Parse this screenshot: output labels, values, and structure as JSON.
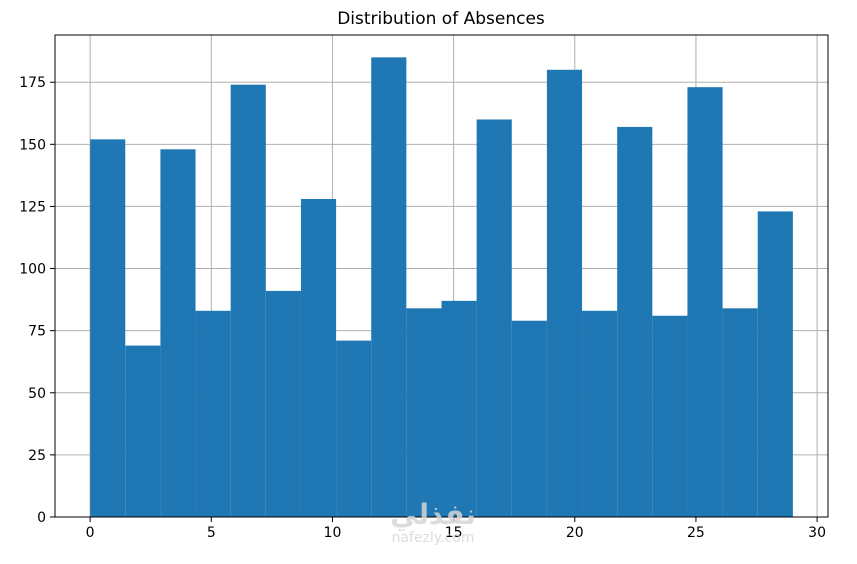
{
  "chart_data": {
    "type": "bar",
    "title": "Distribution of Absences",
    "xlabel": "",
    "ylabel": "",
    "bins": [
      {
        "x0": 0.0,
        "x1": 1.45,
        "count": 152
      },
      {
        "x0": 1.45,
        "x1": 2.9,
        "count": 69
      },
      {
        "x0": 2.9,
        "x1": 4.35,
        "count": 148
      },
      {
        "x0": 4.35,
        "x1": 5.8,
        "count": 83
      },
      {
        "x0": 5.8,
        "x1": 7.25,
        "count": 174
      },
      {
        "x0": 7.25,
        "x1": 8.7,
        "count": 91
      },
      {
        "x0": 8.7,
        "x1": 10.15,
        "count": 128
      },
      {
        "x0": 10.15,
        "x1": 11.6,
        "count": 71
      },
      {
        "x0": 11.6,
        "x1": 13.05,
        "count": 185
      },
      {
        "x0": 13.05,
        "x1": 14.5,
        "count": 84
      },
      {
        "x0": 14.5,
        "x1": 15.95,
        "count": 87
      },
      {
        "x0": 15.95,
        "x1": 17.4,
        "count": 160
      },
      {
        "x0": 17.4,
        "x1": 18.85,
        "count": 79
      },
      {
        "x0": 18.85,
        "x1": 20.3,
        "count": 180
      },
      {
        "x0": 20.3,
        "x1": 21.75,
        "count": 83
      },
      {
        "x0": 21.75,
        "x1": 23.2,
        "count": 157
      },
      {
        "x0": 23.2,
        "x1": 24.65,
        "count": 81
      },
      {
        "x0": 24.65,
        "x1": 26.1,
        "count": 173
      },
      {
        "x0": 26.1,
        "x1": 27.55,
        "count": 84
      },
      {
        "x0": 27.55,
        "x1": 29.0,
        "count": 123
      }
    ],
    "xlim": [
      -1.45,
      30.45
    ],
    "ylim": [
      0,
      194
    ],
    "x_ticks": [
      0,
      5,
      10,
      15,
      20,
      25,
      30
    ],
    "y_ticks": [
      0,
      25,
      50,
      75,
      100,
      125,
      150,
      175
    ],
    "grid": true,
    "bar_color": "#1f77b4",
    "grid_color": "#b0b0b0"
  },
  "watermark": {
    "logo_text": "نفذلي",
    "url_text": "nafezly.com"
  }
}
